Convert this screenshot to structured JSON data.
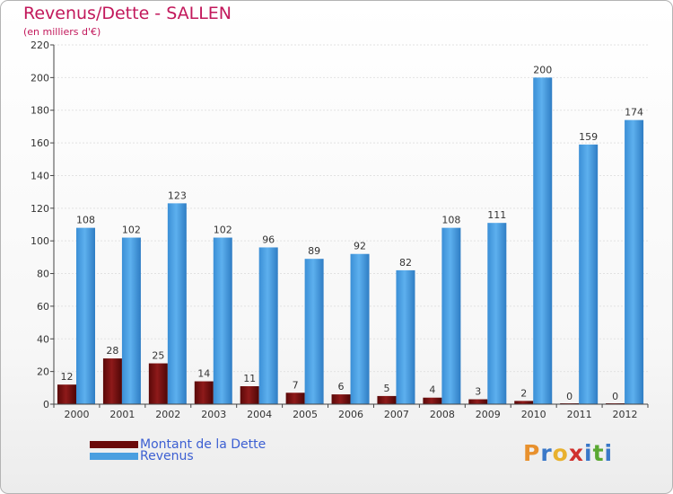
{
  "chart_data": {
    "type": "bar",
    "title": "Revenus/Dette - SALLEN",
    "subtitle": "(en milliers d'€)",
    "categories": [
      "2000",
      "2001",
      "2002",
      "2003",
      "2004",
      "2005",
      "2006",
      "2007",
      "2008",
      "2009",
      "2010",
      "2011",
      "2012"
    ],
    "series": [
      {
        "name": "Montant de la Dette",
        "color": "#6b0a0a",
        "values": [
          12,
          28,
          25,
          14,
          11,
          7,
          6,
          5,
          4,
          3,
          2,
          0,
          0
        ]
      },
      {
        "name": "Revenus",
        "color": "#4a9fe0",
        "values": [
          108,
          102,
          123,
          102,
          96,
          89,
          92,
          82,
          108,
          111,
          200,
          159,
          174
        ]
      }
    ],
    "ylim": [
      0,
      220
    ],
    "yticks": [
      0,
      20,
      40,
      60,
      80,
      100,
      120,
      140,
      160,
      180,
      200,
      220
    ],
    "legend_position": "bottom-left",
    "xlabel": "",
    "ylabel": ""
  },
  "logo": {
    "text": "Proxiti",
    "letters": [
      {
        "ch": "P",
        "color": "#e8912e"
      },
      {
        "ch": "r",
        "color": "#3a78c8"
      },
      {
        "ch": "o",
        "color": "#e8b12e"
      },
      {
        "ch": "x",
        "color": "#d0312d"
      },
      {
        "ch": "i",
        "color": "#3a78c8"
      },
      {
        "ch": "t",
        "color": "#5aa832"
      },
      {
        "ch": "i",
        "color": "#3a78c8"
      }
    ]
  }
}
